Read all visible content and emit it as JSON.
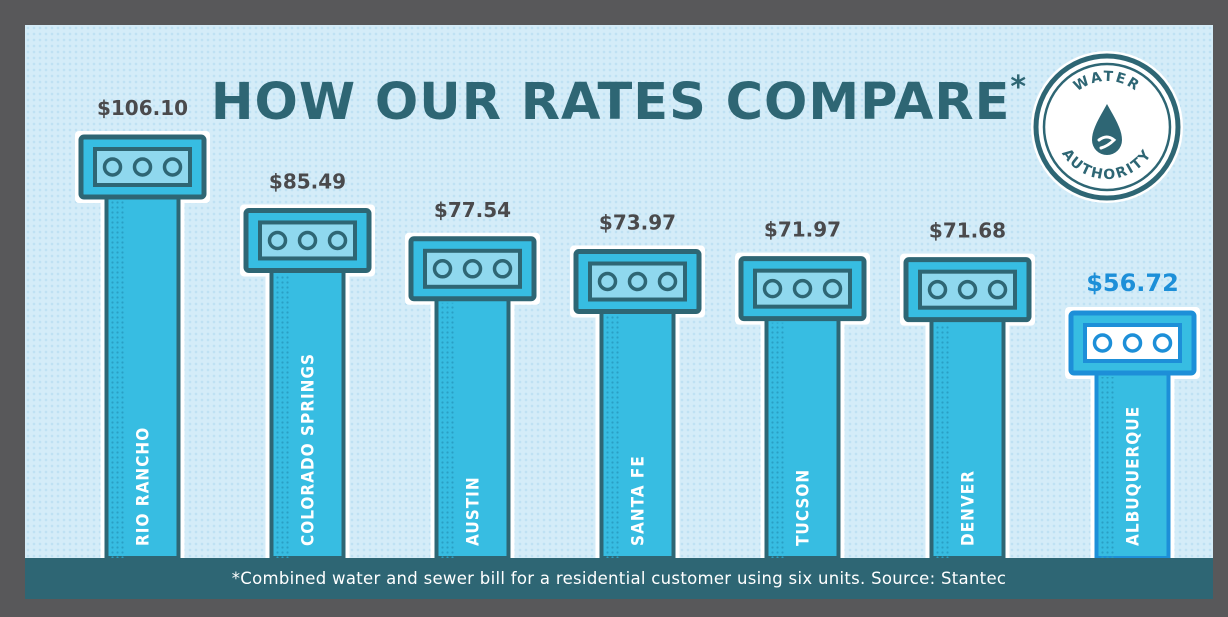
{
  "title": "HOW OUR RATES COMPARE",
  "title_marker": "*",
  "footnote": "*Combined water and sewer bill for a residential customer using six units. Source: Stantec",
  "logo": {
    "top_text": "WATER",
    "bottom_text": "AUTHORITY",
    "icon": "water-drop-icon"
  },
  "colors": {
    "background": "#d4ecf8",
    "dark_teal": "#2e6674",
    "bar_fill": "#37bde2",
    "highlight": "#1d8fd8",
    "frame": "#58585a"
  },
  "chart_data": {
    "type": "bar",
    "categories": [
      "RIO RANCHO",
      "COLORADO SPRINGS",
      "AUSTIN",
      "SANTA FE",
      "TUCSON",
      "DENVER",
      "ALBUQUERQUE"
    ],
    "values": [
      106.1,
      85.49,
      77.54,
      73.97,
      71.97,
      71.68,
      56.72
    ],
    "value_labels": [
      "$106.10",
      "$85.49",
      "$77.54",
      "$73.97",
      "$71.97",
      "$71.68",
      "$56.72"
    ],
    "highlight_category": "ALBUQUERQUE",
    "title": "HOW OUR RATES COMPARE",
    "xlabel": "",
    "ylabel": ""
  }
}
